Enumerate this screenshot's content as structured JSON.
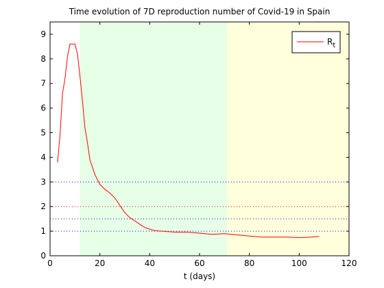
{
  "chart_data": {
    "type": "line",
    "title": "Time evolution of 7D reproduction number of Covid-19 in Spain",
    "xlabel": "t (days)",
    "ylabel": "",
    "xlim": [
      0,
      120
    ],
    "ylim": [
      0,
      9.5
    ],
    "xticks": [
      0,
      20,
      40,
      60,
      80,
      100,
      120
    ],
    "yticks": [
      0,
      1,
      2,
      3,
      4,
      5,
      6,
      7,
      8,
      9
    ],
    "grid": false,
    "legend": {
      "position": "top-right"
    },
    "shaded_regions": [
      {
        "x_start": 12,
        "x_end": 71,
        "color": "#e6ffe6"
      },
      {
        "x_start": 71,
        "x_end": 120,
        "color": "#ffffdc"
      }
    ],
    "reference_lines": [
      {
        "y": 1,
        "color": "#0000ff",
        "style": "dotted"
      },
      {
        "y": 1.5,
        "color": "#0000ff",
        "style": "dotted"
      },
      {
        "y": 2,
        "color": "#cc0000",
        "style": "dotted"
      },
      {
        "y": 3,
        "color": "#0000ff",
        "style": "dotted"
      }
    ],
    "series": [
      {
        "name": "R",
        "name_subscript": "t",
        "color": "#ff0000",
        "x": [
          3,
          4,
          5,
          6,
          7,
          8,
          9,
          10,
          11,
          12,
          13,
          14,
          15,
          16,
          18,
          20,
          22,
          24,
          26,
          28,
          30,
          32,
          34,
          36,
          38,
          40,
          42,
          45,
          50,
          55,
          60,
          65,
          70,
          75,
          80,
          85,
          90,
          95,
          100,
          105,
          108
        ],
        "y": [
          3.8,
          4.9,
          6.6,
          7.2,
          8.1,
          8.6,
          8.6,
          8.6,
          8.2,
          7.3,
          6.3,
          5.2,
          4.6,
          3.9,
          3.3,
          2.9,
          2.7,
          2.55,
          2.35,
          2.05,
          1.75,
          1.55,
          1.42,
          1.28,
          1.15,
          1.08,
          1.02,
          1.0,
          0.96,
          0.96,
          0.92,
          0.87,
          0.9,
          0.85,
          0.8,
          0.76,
          0.76,
          0.76,
          0.74,
          0.76,
          0.79
        ]
      }
    ]
  }
}
